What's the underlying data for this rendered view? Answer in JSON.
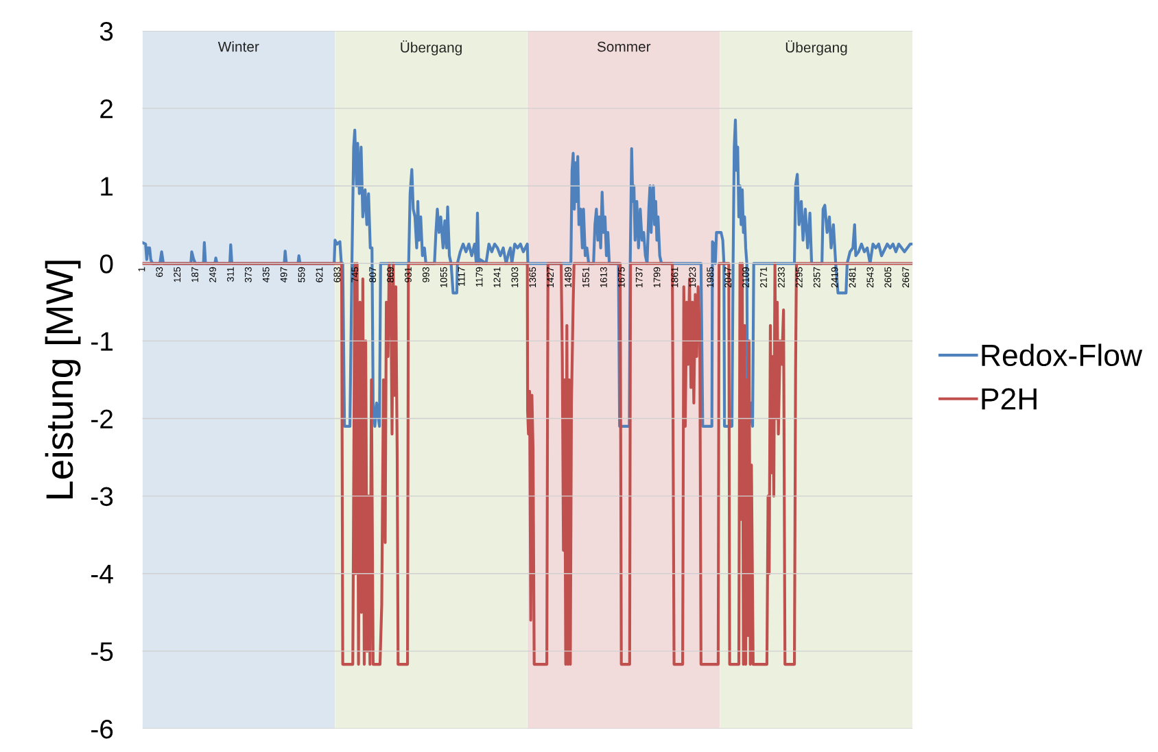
{
  "chart_data": {
    "type": "line",
    "ylabel": "Leistung [MW]",
    "xlim": [
      1,
      2688
    ],
    "xticks": [
      1,
      63,
      125,
      187,
      249,
      311,
      373,
      435,
      497,
      559,
      621,
      683,
      745,
      807,
      869,
      931,
      993,
      1055,
      1117,
      1179,
      1241,
      1303,
      1365,
      1427,
      1489,
      1551,
      1613,
      1675,
      1737,
      1799,
      1861,
      1923,
      1985,
      2047,
      2109,
      2171,
      2233,
      2295,
      2357,
      2419,
      2481,
      2543,
      2605,
      2667
    ],
    "ylim": [
      -6,
      3
    ],
    "yticks": [
      -6,
      -5,
      -4,
      -3,
      -2,
      -1,
      0,
      1,
      2,
      3
    ],
    "grid": "y",
    "legend": "right",
    "marker": "none",
    "line_style": "solid",
    "bands": [
      {
        "axis": "x",
        "from": 1,
        "to": 672,
        "label": "Winter",
        "color": "#dce6f1"
      },
      {
        "axis": "x",
        "from": 673,
        "to": 1344,
        "label": "Übergang",
        "color": "#ebf1de"
      },
      {
        "axis": "x",
        "from": 1345,
        "to": 2016,
        "label": "Sommer",
        "color": "#f2dcdb"
      },
      {
        "axis": "x",
        "from": 2017,
        "to": 2688,
        "label": "Übergang",
        "color": "#ebf1de"
      }
    ],
    "series": [
      {
        "name": "Redox-Flow",
        "color": "#4f81bd",
        "x": [
          1,
          12,
          16,
          20,
          26,
          30,
          36,
          62,
          68,
          74,
          170,
          173,
          180,
          186,
          214,
          217,
          221,
          254,
          257,
          261,
          306,
          309,
          313,
          496,
          499,
          503,
          544,
          547,
          551,
          670,
          673,
          680,
          690,
          695,
          700,
          706,
          725,
          732,
          738,
          742,
          748,
          752,
          758,
          764,
          770,
          778,
          784,
          790,
          796,
          802,
          806,
          812,
          818,
          828,
          832,
          930,
          935,
          941,
          946,
          952,
          958,
          962,
          966,
          972,
          978,
          985,
          990,
          1020,
          1025,
          1030,
          1036,
          1042,
          1050,
          1056,
          1062,
          1066,
          1072,
          1078,
          1085,
          1098,
          1100,
          1110,
          1120,
          1130,
          1140,
          1150,
          1160,
          1166,
          1170,
          1174,
          1180,
          1200,
          1210,
          1220,
          1230,
          1240,
          1250,
          1260,
          1270,
          1280,
          1285,
          1290,
          1300,
          1310,
          1320,
          1330,
          1344,
          1346,
          1496,
          1500,
          1504,
          1508,
          1512,
          1516,
          1520,
          1524,
          1530,
          1536,
          1540,
          1546,
          1552,
          1558,
          1575,
          1580,
          1585,
          1590,
          1595,
          1600,
          1605,
          1610,
          1615,
          1620,
          1625,
          1630,
          1662,
          1666,
          1700,
          1703,
          1708,
          1712,
          1716,
          1720,
          1726,
          1732,
          1738,
          1744,
          1750,
          1756,
          1762,
          1768,
          1772,
          1776,
          1780,
          1784,
          1788,
          1792,
          1796,
          1800,
          1806,
          1812,
          1950,
          1956,
          1988,
          1990,
          1996,
          2000,
          2004,
          2010,
          2020,
          2026,
          2030,
          2032,
          2058,
          2062,
          2066,
          2070,
          2074,
          2078,
          2082,
          2086,
          2090,
          2094,
          2098,
          2102,
          2106,
          2110,
          2112,
          2118,
          2124,
          2130,
          2134,
          2276,
          2280,
          2286,
          2292,
          2300,
          2306,
          2314,
          2322,
          2330,
          2336,
          2372,
          2376,
          2382,
          2390,
          2398,
          2404,
          2412,
          2420,
          2428,
          2456,
          2460,
          2470,
          2480,
          2486,
          2490,
          2500,
          2510,
          2520,
          2530,
          2540,
          2550,
          2560,
          2570,
          2580,
          2600,
          2610,
          2620,
          2630,
          2640,
          2660,
          2680,
          2688
        ],
        "values": [
          0.27,
          0.25,
          0.05,
          0.2,
          0.2,
          0.05,
          0,
          0,
          0.15,
          0,
          0,
          0.15,
          0.05,
          0,
          0,
          0.27,
          0,
          0,
          0.07,
          0,
          0,
          0.24,
          0,
          0,
          0.16,
          0,
          0,
          0.1,
          0,
          0,
          0.3,
          0.25,
          0.28,
          0,
          0,
          -2.1,
          -2.1,
          0,
          1.5,
          1.72,
          1.0,
          1.55,
          0.9,
          1.5,
          0.6,
          0.95,
          0.5,
          0.9,
          0.2,
          0.2,
          -1.8,
          -2.1,
          -1.8,
          -2.1,
          0,
          0,
          0.9,
          1.21,
          0.7,
          0.6,
          0.2,
          0.8,
          0.3,
          0.6,
          0.1,
          0.2,
          0,
          0,
          0.4,
          0.7,
          0.4,
          0.6,
          0.2,
          0.55,
          0.2,
          0.73,
          0.1,
          0,
          -0.38,
          -0.38,
          0,
          0.15,
          0.25,
          0.15,
          0.25,
          0.1,
          0.25,
          0,
          0.65,
          0,
          0.05,
          0,
          0.25,
          0.15,
          0.25,
          0.2,
          0.1,
          0.2,
          0,
          0.15,
          0.2,
          0,
          0.25,
          0.2,
          0.25,
          0.15,
          0.25,
          0,
          0,
          1.2,
          1.42,
          0.7,
          1.3,
          0.8,
          1.38,
          0.5,
          0.7,
          0.2,
          0.7,
          0.1,
          0.2,
          0,
          0,
          0.5,
          0.7,
          0.3,
          0.6,
          0.2,
          0.92,
          0.4,
          0.6,
          0.1,
          0.4,
          0,
          0,
          -2.1,
          -2.1,
          0,
          1.48,
          0.8,
          1.0,
          0.3,
          0.8,
          0.2,
          0.7,
          0.3,
          0.4,
          0.1,
          0,
          0.7,
          1.0,
          0.4,
          0.9,
          1.0,
          0.5,
          0.8,
          0.3,
          0.6,
          0.1,
          0,
          0,
          -2.1,
          -2.1,
          0.28,
          0.25,
          0,
          0.4,
          0.4,
          0.4,
          0.3,
          0,
          -2.1,
          -2.1,
          0,
          1.5,
          1.85,
          1.2,
          1.5,
          0.6,
          1.0,
          0.5,
          0.95,
          0.4,
          0.6,
          0.2,
          0,
          -1.8,
          -2.1,
          -1.8,
          -2.1,
          0,
          0,
          1.0,
          1.15,
          0.5,
          0.8,
          0.3,
          0.7,
          0.2,
          0.65,
          0,
          0,
          0.7,
          0.75,
          0.4,
          0.6,
          0.2,
          0.5,
          0,
          -0.38,
          -0.38,
          0,
          0.15,
          0.2,
          0.5,
          0.1,
          0.15,
          0.25,
          0.15,
          0.2,
          0,
          0.25,
          0.2,
          0.25,
          0.1,
          0.25,
          0.2,
          0.25,
          0.15,
          0.25,
          0.15,
          0.25,
          0.25
        ]
      },
      {
        "name": "P2H",
        "color": "#c0504d",
        "x": [
          1,
          696,
          700,
          735,
          742,
          745,
          750,
          755,
          760,
          765,
          770,
          775,
          780,
          785,
          790,
          795,
          800,
          806,
          830,
          836,
          842,
          848,
          852,
          858,
          862,
          868,
          872,
          876,
          880,
          885,
          890,
          893,
          926,
          929,
          1344,
          1345,
          1348,
          1352,
          1356,
          1360,
          1364,
          1368,
          1412,
          1416,
          1462,
          1466,
          1470,
          1474,
          1478,
          1482,
          1486,
          1490,
          1494,
          1498,
          1504,
          1507,
          1668,
          1672,
          1701,
          1704,
          1850,
          1856,
          1886,
          1890,
          1895,
          1900,
          1905,
          1910,
          1915,
          1920,
          1925,
          1930,
          1935,
          1940,
          1946,
          1950,
          2010,
          2013,
          2047,
          2050,
          2082,
          2086,
          2090,
          2094,
          2098,
          2102,
          2106,
          2110,
          2114,
          2118,
          2122,
          2126,
          2132,
          2180,
          2184,
          2188,
          2192,
          2196,
          2200,
          2204,
          2208,
          2212,
          2216,
          2220,
          2226,
          2232,
          2238,
          2243,
          2276,
          2280,
          2283,
          2688
        ],
        "values": [
          0,
          0,
          -5.17,
          -5.17,
          0,
          -4.0,
          0,
          -5.17,
          -0.5,
          -4.5,
          -0.2,
          -5.17,
          -1.0,
          -5.0,
          -3.0,
          -5.17,
          -1.5,
          -5.17,
          -5.17,
          -4.4,
          -1.5,
          -3.6,
          -0.5,
          -1.2,
          0,
          -0.5,
          -2.2,
          0,
          -1.7,
          -0.3,
          -2.5,
          -5.17,
          -5.17,
          0,
          0,
          -1.9,
          -2.2,
          -1.65,
          -4.6,
          -1.7,
          -2.4,
          -5.17,
          -5.17,
          0,
          0,
          -1.2,
          -3.7,
          -1.5,
          -5.17,
          -0.8,
          -5.17,
          -1.5,
          -5.17,
          -1.8,
          -0.5,
          0,
          0,
          -5.17,
          -5.17,
          0,
          0,
          -5.17,
          -5.17,
          -0.3,
          -2.1,
          -0.5,
          -1.3,
          -0.2,
          -1.6,
          -0.5,
          -1.8,
          -0.4,
          -1.2,
          -0.3,
          -1.0,
          -5.17,
          -5.17,
          0,
          0,
          -5.17,
          -5.17,
          0,
          -3.3,
          0,
          -5.17,
          -0.8,
          -5.17,
          -1.5,
          -4.8,
          -1.0,
          -5.17,
          -2.6,
          -5.17,
          -5.17,
          -3.0,
          -4.0,
          -0.8,
          -2.7,
          -1.2,
          -3.0,
          0,
          -2.0,
          -0.5,
          -2.2,
          -1.0,
          -1.3,
          -0.6,
          -5.17,
          -5.17,
          -1.4,
          0,
          0
        ]
      }
    ]
  }
}
